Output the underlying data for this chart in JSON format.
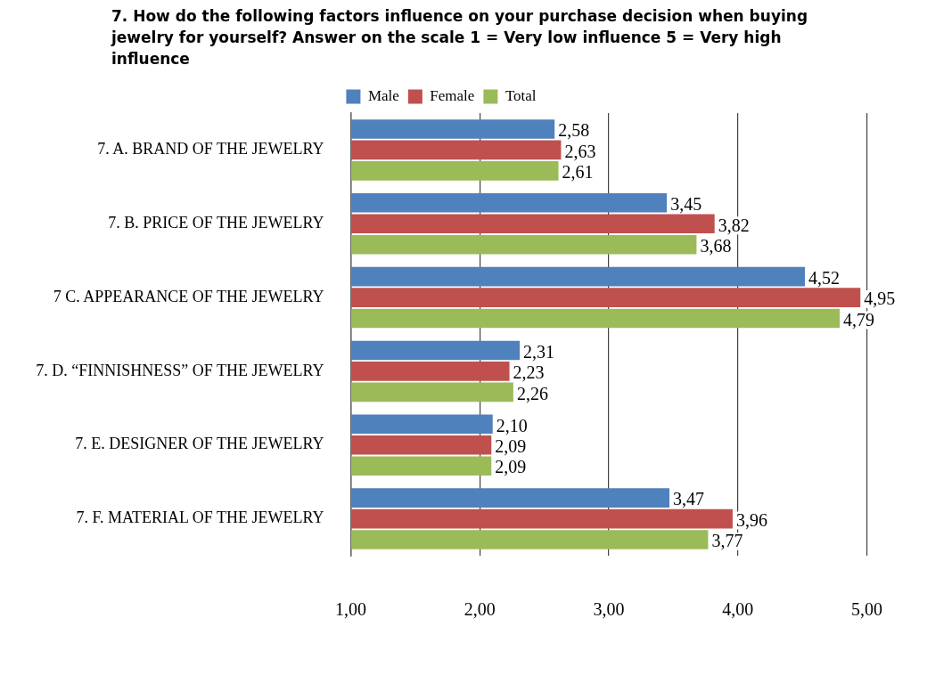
{
  "chart_data": {
    "type": "bar",
    "orientation": "horizontal",
    "title": "7. How do the following factors influence on your purchase decision when buying jewelry for yourself? Answer on the scale 1 = Very low influence 5 = Very high influence",
    "categories": [
      "7. A. BRAND OF THE JEWELRY",
      "7. B. PRICE OF THE JEWELRY",
      "7 C. APPEARANCE OF THE JEWELRY",
      "7. D. “FINNISHNESS” OF THE JEWELRY",
      "7. E. DESIGNER OF THE JEWELRY",
      "7. F. MATERIAL OF THE JEWELRY"
    ],
    "series": [
      {
        "name": "Male",
        "color": "#4f81bd",
        "values": [
          2.58,
          3.45,
          4.52,
          2.31,
          2.1,
          3.47
        ],
        "value_labels": [
          "2,58",
          "3,45",
          "4,52",
          "2,31",
          "2,10",
          "3,47"
        ]
      },
      {
        "name": "Female",
        "color": "#c0504d",
        "values": [
          2.63,
          3.82,
          4.95,
          2.23,
          2.09,
          3.96
        ],
        "value_labels": [
          "2,63",
          "3,82",
          "4,95",
          "2,23",
          "2,09",
          "3,96"
        ]
      },
      {
        "name": "Total",
        "color": "#9bbb59",
        "values": [
          2.61,
          3.68,
          4.79,
          2.26,
          2.09,
          3.77
        ],
        "value_labels": [
          "2,61",
          "3,68",
          "4,79",
          "2,26",
          "2,09",
          "3,77"
        ]
      }
    ],
    "xlim": [
      1,
      5
    ],
    "xticks": [
      {
        "value": 1,
        "label": "1,00"
      },
      {
        "value": 2,
        "label": "2,00"
      },
      {
        "value": 3,
        "label": "3,00"
      },
      {
        "value": 4,
        "label": "4,00"
      },
      {
        "value": 5,
        "label": "5,00"
      }
    ],
    "grid": "x",
    "legend": "top"
  }
}
